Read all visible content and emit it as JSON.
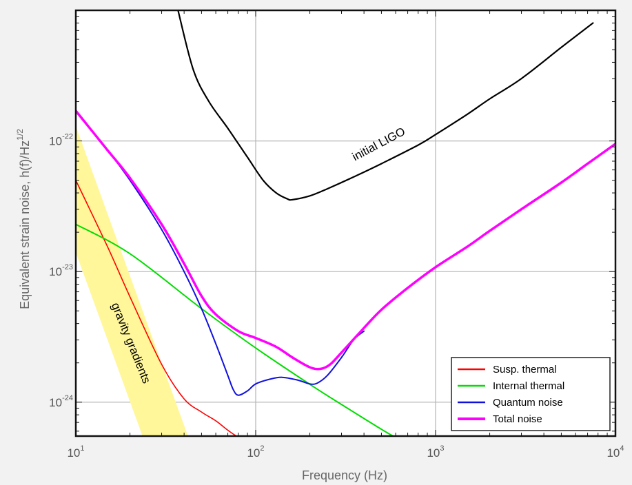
{
  "chart_data": {
    "type": "line",
    "title": "",
    "xlabel": "Frequency (Hz)",
    "ylabel_main": "Equivalent strain noise,   h(f)/Hz",
    "ylabel_sup": "1/2",
    "x_scale": "log",
    "y_scale": "log",
    "xlim": [
      10,
      10000
    ],
    "ylim": [
      5.5e-25,
      1e-21
    ],
    "grid": true,
    "x_ticks": [
      {
        "value": 10,
        "base": "10",
        "exp": "1"
      },
      {
        "value": 100,
        "base": "10",
        "exp": "2"
      },
      {
        "value": 1000,
        "base": "10",
        "exp": "3"
      },
      {
        "value": 10000,
        "base": "10",
        "exp": "4"
      }
    ],
    "y_ticks": [
      {
        "value": 1e-24,
        "base": "10",
        "exp": "-24"
      },
      {
        "value": 1e-23,
        "base": "10",
        "exp": "-23"
      },
      {
        "value": 1e-22,
        "base": "10",
        "exp": "-22"
      }
    ],
    "legend_position": "bottom-right",
    "band": {
      "label": "gravity gradients",
      "color": "#fff79a",
      "points": [
        [
          10,
          1.4e-23
        ],
        [
          10,
          1.3e-22
        ],
        [
          42,
          5.5e-25
        ],
        [
          23.5,
          5.5e-25
        ]
      ]
    },
    "series": [
      {
        "name": "initial LIGO",
        "color": "#000000",
        "width": 2.2,
        "in_legend": false,
        "x": [
          37,
          45,
          55,
          70,
          90,
          110,
          130,
          150,
          160,
          200,
          250,
          350,
          500,
          800,
          1000,
          1500,
          2000,
          3000,
          5000,
          7500
        ],
        "y": [
          1e-21,
          3.5e-22,
          2e-22,
          1.25e-22,
          7.5e-23,
          5e-23,
          4e-23,
          3.6e-23,
          3.55e-23,
          3.8e-23,
          4.3e-23,
          5.3e-23,
          6.7e-23,
          9.3e-23,
          1.12e-22,
          1.6e-22,
          2.1e-22,
          3e-22,
          5.2e-22,
          8e-22
        ]
      },
      {
        "name": "Susp. thermal",
        "color": "#ff0000",
        "width": 1.6,
        "in_legend": true,
        "x": [
          10,
          15,
          20,
          30,
          40,
          50,
          60,
          70,
          78
        ],
        "y": [
          5e-23,
          1.55e-23,
          6.4e-24,
          1.95e-24,
          1.06e-24,
          8.4e-25,
          7.2e-25,
          6.1e-25,
          5.5e-25
        ]
      },
      {
        "name": "Internal thermal",
        "color": "#00dd00",
        "width": 2.0,
        "in_legend": true,
        "x": [
          10,
          20,
          50,
          100,
          200,
          300,
          400,
          500,
          580
        ],
        "y": [
          2.3e-23,
          1.37e-23,
          5.2e-24,
          2.6e-24,
          1.37e-24,
          9.6e-25,
          7.5e-25,
          6.2e-25,
          5.5e-25
        ]
      },
      {
        "name": "Quantum noise",
        "color": "#1111dd",
        "width": 2.0,
        "in_legend": true,
        "x": [
          10,
          15,
          20,
          30,
          40,
          50,
          60,
          70,
          75,
          80,
          90,
          100,
          120,
          140,
          170,
          200,
          220,
          250,
          300,
          350,
          400
        ],
        "y": [
          1.7e-22,
          8.5e-23,
          5e-23,
          2.1e-23,
          1e-23,
          5.2e-24,
          2.8e-24,
          1.6e-24,
          1.25e-24,
          1.13e-24,
          1.22e-24,
          1.38e-24,
          1.5e-24,
          1.55e-24,
          1.48e-24,
          1.38e-24,
          1.4e-24,
          1.6e-24,
          2.2e-24,
          3e-24,
          3.5e-24
        ]
      },
      {
        "name": "Total noise",
        "color": "#ff00ff",
        "width": 3.5,
        "in_legend": true,
        "x": [
          10,
          15,
          20,
          30,
          40,
          50,
          60,
          80,
          100,
          130,
          160,
          200,
          230,
          260,
          300,
          400,
          500,
          700,
          1000,
          1500,
          2000,
          3000,
          5000,
          7000,
          10000
        ],
        "y": [
          1.7e-22,
          8.5e-23,
          5.2e-23,
          2.3e-23,
          1.15e-23,
          6.5e-24,
          4.7e-24,
          3.5e-24,
          3.1e-24,
          2.65e-24,
          2.2e-24,
          1.85e-24,
          1.8e-24,
          1.95e-24,
          2.4e-24,
          3.7e-24,
          5.1e-24,
          7.5e-24,
          1.08e-23,
          1.55e-23,
          2.05e-23,
          3e-23,
          4.8e-23,
          6.7e-23,
          9.5e-23
        ]
      }
    ]
  }
}
